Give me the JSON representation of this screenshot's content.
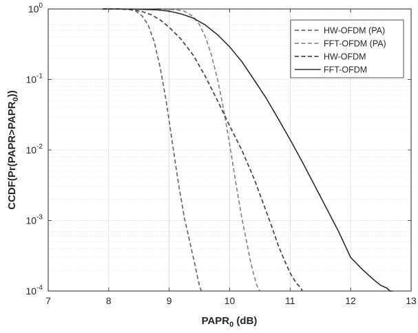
{
  "chart_data": {
    "type": "line",
    "title": "",
    "xlabel": {
      "main": "PAPR",
      "sub": "0",
      "suffix": " (dB)"
    },
    "ylabel": {
      "p1": "CCDF(Pr(PAPR>PAPR",
      "sub": "0",
      "p2": "))"
    },
    "xlim": [
      7,
      13
    ],
    "ylim": [
      0.0001,
      1
    ],
    "yscale": "log",
    "grid": "on (major and minor, dotted)",
    "legend_position": "top-right",
    "x_ticks": [
      7,
      8,
      9,
      10,
      11,
      12,
      13
    ],
    "x_tick_labels": [
      "7",
      "8",
      "9",
      "10",
      "11",
      "12",
      "13"
    ],
    "y_ticks": [
      {
        "value": 0.0001,
        "base": "10",
        "exp": "-4"
      },
      {
        "value": 0.001,
        "base": "10",
        "exp": "-3"
      },
      {
        "value": 0.01,
        "base": "10",
        "exp": "-2"
      },
      {
        "value": 0.1,
        "base": "10",
        "exp": "-1"
      },
      {
        "value": 1,
        "base": "10",
        "exp": "0"
      }
    ],
    "series": [
      {
        "name": "HW-OFDM (PA)",
        "style": "dashed",
        "color": "#6e6e6e",
        "x": [
          7.9,
          8.2,
          8.35,
          8.45,
          8.55,
          8.65,
          8.75,
          8.85,
          8.95,
          9.05,
          9.15,
          9.25,
          9.32,
          9.38,
          9.42,
          9.46,
          9.5,
          9.53
        ],
        "y": [
          1,
          0.998,
          0.98,
          0.93,
          0.8,
          0.6,
          0.35,
          0.15,
          0.05,
          0.013,
          0.0035,
          0.0011,
          0.0006,
          0.00035,
          0.00025,
          0.00017,
          0.00012,
          0.0001
        ]
      },
      {
        "name": "FFT-OFDM (PA)",
        "style": "dashed",
        "color": "#8c8c8c",
        "x": [
          8.8,
          9.1,
          9.25,
          9.4,
          9.5,
          9.6,
          9.7,
          9.8,
          9.9,
          10.0,
          10.1,
          10.2,
          10.28,
          10.35,
          10.4,
          10.45,
          10.5
        ],
        "y": [
          1,
          0.98,
          0.93,
          0.78,
          0.6,
          0.4,
          0.22,
          0.1,
          0.038,
          0.012,
          0.0035,
          0.0011,
          0.0005,
          0.00025,
          0.00017,
          0.00012,
          0.0001
        ]
      },
      {
        "name": "HW-OFDM",
        "style": "dashed",
        "color": "#4a4a4a",
        "x": [
          7.9,
          8.2,
          8.4,
          8.55,
          8.7,
          8.85,
          9.0,
          9.2,
          9.4,
          9.6,
          9.8,
          10.0,
          10.2,
          10.4,
          10.55,
          10.7,
          10.8,
          10.9,
          11.0,
          11.1,
          11.18,
          11.2
        ],
        "y": [
          1,
          0.998,
          0.97,
          0.92,
          0.83,
          0.7,
          0.55,
          0.37,
          0.22,
          0.11,
          0.05,
          0.022,
          0.01,
          0.004,
          0.0018,
          0.0008,
          0.00045,
          0.00028,
          0.00018,
          0.00013,
          0.00011,
          0.0001
        ]
      },
      {
        "name": "FFT-OFDM",
        "style": "solid",
        "color": "#2b2b2b",
        "x": [
          7.9,
          8.4,
          8.8,
          9.0,
          9.2,
          9.4,
          9.6,
          9.8,
          10.0,
          10.2,
          10.4,
          10.6,
          10.8,
          11.0,
          11.2,
          11.4,
          11.6,
          11.8,
          12.0,
          12.2,
          12.4,
          12.5,
          12.6,
          12.65,
          12.7
        ],
        "y": [
          1,
          0.995,
          0.97,
          0.93,
          0.85,
          0.74,
          0.59,
          0.43,
          0.29,
          0.18,
          0.1,
          0.055,
          0.028,
          0.014,
          0.0068,
          0.0032,
          0.0015,
          0.0007,
          0.0003,
          0.0002,
          0.00014,
          0.00012,
          0.00011,
          0.0001,
          0.0001
        ]
      }
    ]
  }
}
